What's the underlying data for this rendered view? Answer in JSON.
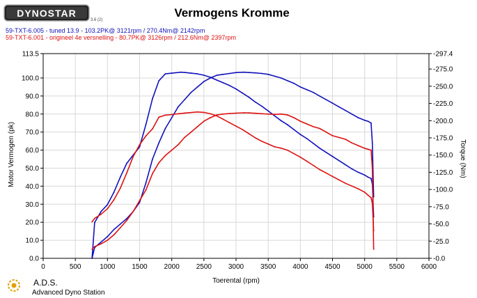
{
  "header": {
    "logo_text": "DYNOSTAR",
    "logo_small": "3.6 (2)"
  },
  "footer": {
    "company": "A.D.S.",
    "company_full": "Advanced Dyno Station"
  },
  "colors": {
    "tuned": "#1111bb",
    "original": "#dd1111",
    "grid": "#d8d8d8"
  },
  "chart_data": {
    "type": "line",
    "title": "Vermogens Kromme",
    "xlabel": "Toerental (rpm)",
    "ylabel": "Motor Vermogen (pk)",
    "y2label": "Torque (Nm)",
    "xlim": [
      0,
      6000
    ],
    "ylim": [
      0,
      113.5
    ],
    "y2lim": [
      0,
      297.4
    ],
    "x_ticks": [
      0,
      500,
      1000,
      1500,
      2000,
      2500,
      3000,
      3500,
      4000,
      4500,
      5000,
      5500,
      6000
    ],
    "y_ticks": [
      "0.0",
      "10.0",
      "20.0",
      "30.0",
      "40.0",
      "50.0",
      "60.0",
      "70.0",
      "80.0",
      "90.0",
      "100.0",
      "113.5"
    ],
    "y_tick_values": [
      0,
      10,
      20,
      30,
      40,
      50,
      60,
      70,
      80,
      90,
      100,
      113.5
    ],
    "y2_ticks": [
      "0.0",
      "25.0",
      "50.0",
      "75.0",
      "100.0",
      "125.0",
      "150.0",
      "175.0",
      "200.0",
      "225.0",
      "250.0",
      "275.0",
      "297.4"
    ],
    "y2_tick_values": [
      0,
      25,
      50,
      75,
      100,
      125,
      150,
      175,
      200,
      225,
      250,
      275,
      297.4
    ],
    "grid": true,
    "legend": [
      {
        "text": "59-TXT-6.005 - tuned 13.9  - 103.2PK@ 3121rpm / 270.4Nm@ 2142rpm",
        "color": "#1111bb"
      },
      {
        "text": "59-TXT-6.001 - origineel 4e versnelling  - 80.7PK@ 3126rpm / 212.6Nm@ 2397rpm",
        "color": "#dd1111"
      }
    ],
    "series": [
      {
        "name": "59-TXT-6.005 - tuned 13.9",
        "kind": "power",
        "axis": "left",
        "color": "#1111bb",
        "x": [
          760,
          800,
          900,
          1000,
          1100,
          1200,
          1300,
          1400,
          1500,
          1600,
          1700,
          1800,
          1900,
          2000,
          2100,
          2200,
          2300,
          2400,
          2500,
          2600,
          2700,
          2800,
          2900,
          3000,
          3121,
          3200,
          3300,
          3400,
          3500,
          3600,
          3700,
          3800,
          3900,
          4000,
          4100,
          4200,
          4300,
          4400,
          4500,
          4600,
          4700,
          4800,
          4900,
          5000,
          5050,
          5100,
          5120,
          5140
        ],
        "y": [
          0,
          6,
          9,
          12,
          16,
          19,
          22,
          26,
          31,
          42,
          55,
          64,
          72,
          78,
          84,
          88,
          92,
          95,
          98,
          100,
          101.5,
          102,
          102.5,
          103,
          103.2,
          103,
          102.8,
          102.5,
          102,
          101,
          100,
          98.5,
          97,
          95,
          93.5,
          92,
          90,
          88,
          86,
          84,
          82,
          80,
          78,
          76.5,
          76,
          75,
          64,
          34
        ]
      },
      {
        "name": "59-TXT-6.005 - tuned 13.9",
        "kind": "torque",
        "axis": "right",
        "color": "#1111bb",
        "x": [
          760,
          800,
          900,
          1000,
          1100,
          1200,
          1300,
          1400,
          1500,
          1600,
          1700,
          1800,
          1900,
          2000,
          2142,
          2200,
          2300,
          2400,
          2500,
          2600,
          2700,
          2800,
          2900,
          3000,
          3100,
          3200,
          3300,
          3400,
          3500,
          3600,
          3700,
          3800,
          3900,
          4000,
          4100,
          4200,
          4300,
          4400,
          4500,
          4600,
          4700,
          4800,
          4900,
          5000,
          5050,
          5100,
          5120,
          5140
        ],
        "y": [
          0,
          52,
          68,
          78,
          96,
          118,
          138,
          150,
          162,
          195,
          232,
          258,
          268,
          269,
          270.4,
          270,
          269,
          268,
          266,
          263,
          259,
          255,
          251,
          246,
          240,
          234,
          227,
          221,
          214,
          207,
          200,
          194,
          187,
          180,
          174,
          167,
          160,
          154,
          148,
          142,
          136,
          130,
          125,
          121,
          118,
          116,
          108,
          60
        ]
      },
      {
        "name": "59-TXT-6.001 - origineel 4e versnelling",
        "kind": "power",
        "axis": "left",
        "color": "#dd1111",
        "x": [
          760,
          800,
          900,
          1000,
          1100,
          1200,
          1300,
          1400,
          1500,
          1600,
          1700,
          1800,
          1900,
          2000,
          2100,
          2200,
          2300,
          2400,
          2500,
          2600,
          2700,
          2800,
          2900,
          3000,
          3126,
          3200,
          3300,
          3400,
          3500,
          3600,
          3700,
          3800,
          3900,
          4000,
          4100,
          4200,
          4300,
          4400,
          4500,
          4600,
          4700,
          4800,
          4900,
          5000,
          5050,
          5100,
          5120,
          5140
        ],
        "y": [
          5,
          6.5,
          8,
          10,
          13,
          17,
          21,
          26,
          32,
          38,
          47,
          53,
          57,
          60,
          63,
          67,
          70,
          73,
          76,
          78,
          79.5,
          80,
          80.3,
          80.5,
          80.7,
          80.6,
          80.4,
          80.2,
          80,
          79.8,
          80,
          79.5,
          78,
          76,
          74.5,
          73,
          72,
          70,
          68,
          67,
          66,
          64,
          62.5,
          61,
          60.5,
          60,
          50,
          5
        ]
      },
      {
        "name": "59-TXT-6.001 - origineel 4e versnelling",
        "kind": "torque",
        "axis": "right",
        "color": "#dd1111",
        "x": [
          760,
          800,
          900,
          1000,
          1100,
          1200,
          1300,
          1400,
          1500,
          1600,
          1700,
          1800,
          1900,
          2000,
          2100,
          2200,
          2397,
          2500,
          2600,
          2700,
          2800,
          2900,
          3000,
          3100,
          3200,
          3300,
          3400,
          3500,
          3600,
          3700,
          3800,
          3900,
          4000,
          4100,
          4200,
          4300,
          4400,
          4500,
          4600,
          4700,
          4800,
          4900,
          5000,
          5050,
          5100,
          5120,
          5140
        ],
        "y": [
          53,
          58,
          64,
          72,
          85,
          102,
          124,
          148,
          165,
          178,
          188,
          205,
          208,
          209,
          210,
          211,
          212.6,
          212,
          210,
          207,
          202,
          197,
          192,
          187,
          181,
          175,
          170,
          166,
          162,
          160,
          157,
          152,
          147,
          141,
          135,
          129,
          124,
          119,
          114,
          109,
          105,
          101,
          96,
          92,
          88,
          80,
          40
        ]
      }
    ]
  }
}
